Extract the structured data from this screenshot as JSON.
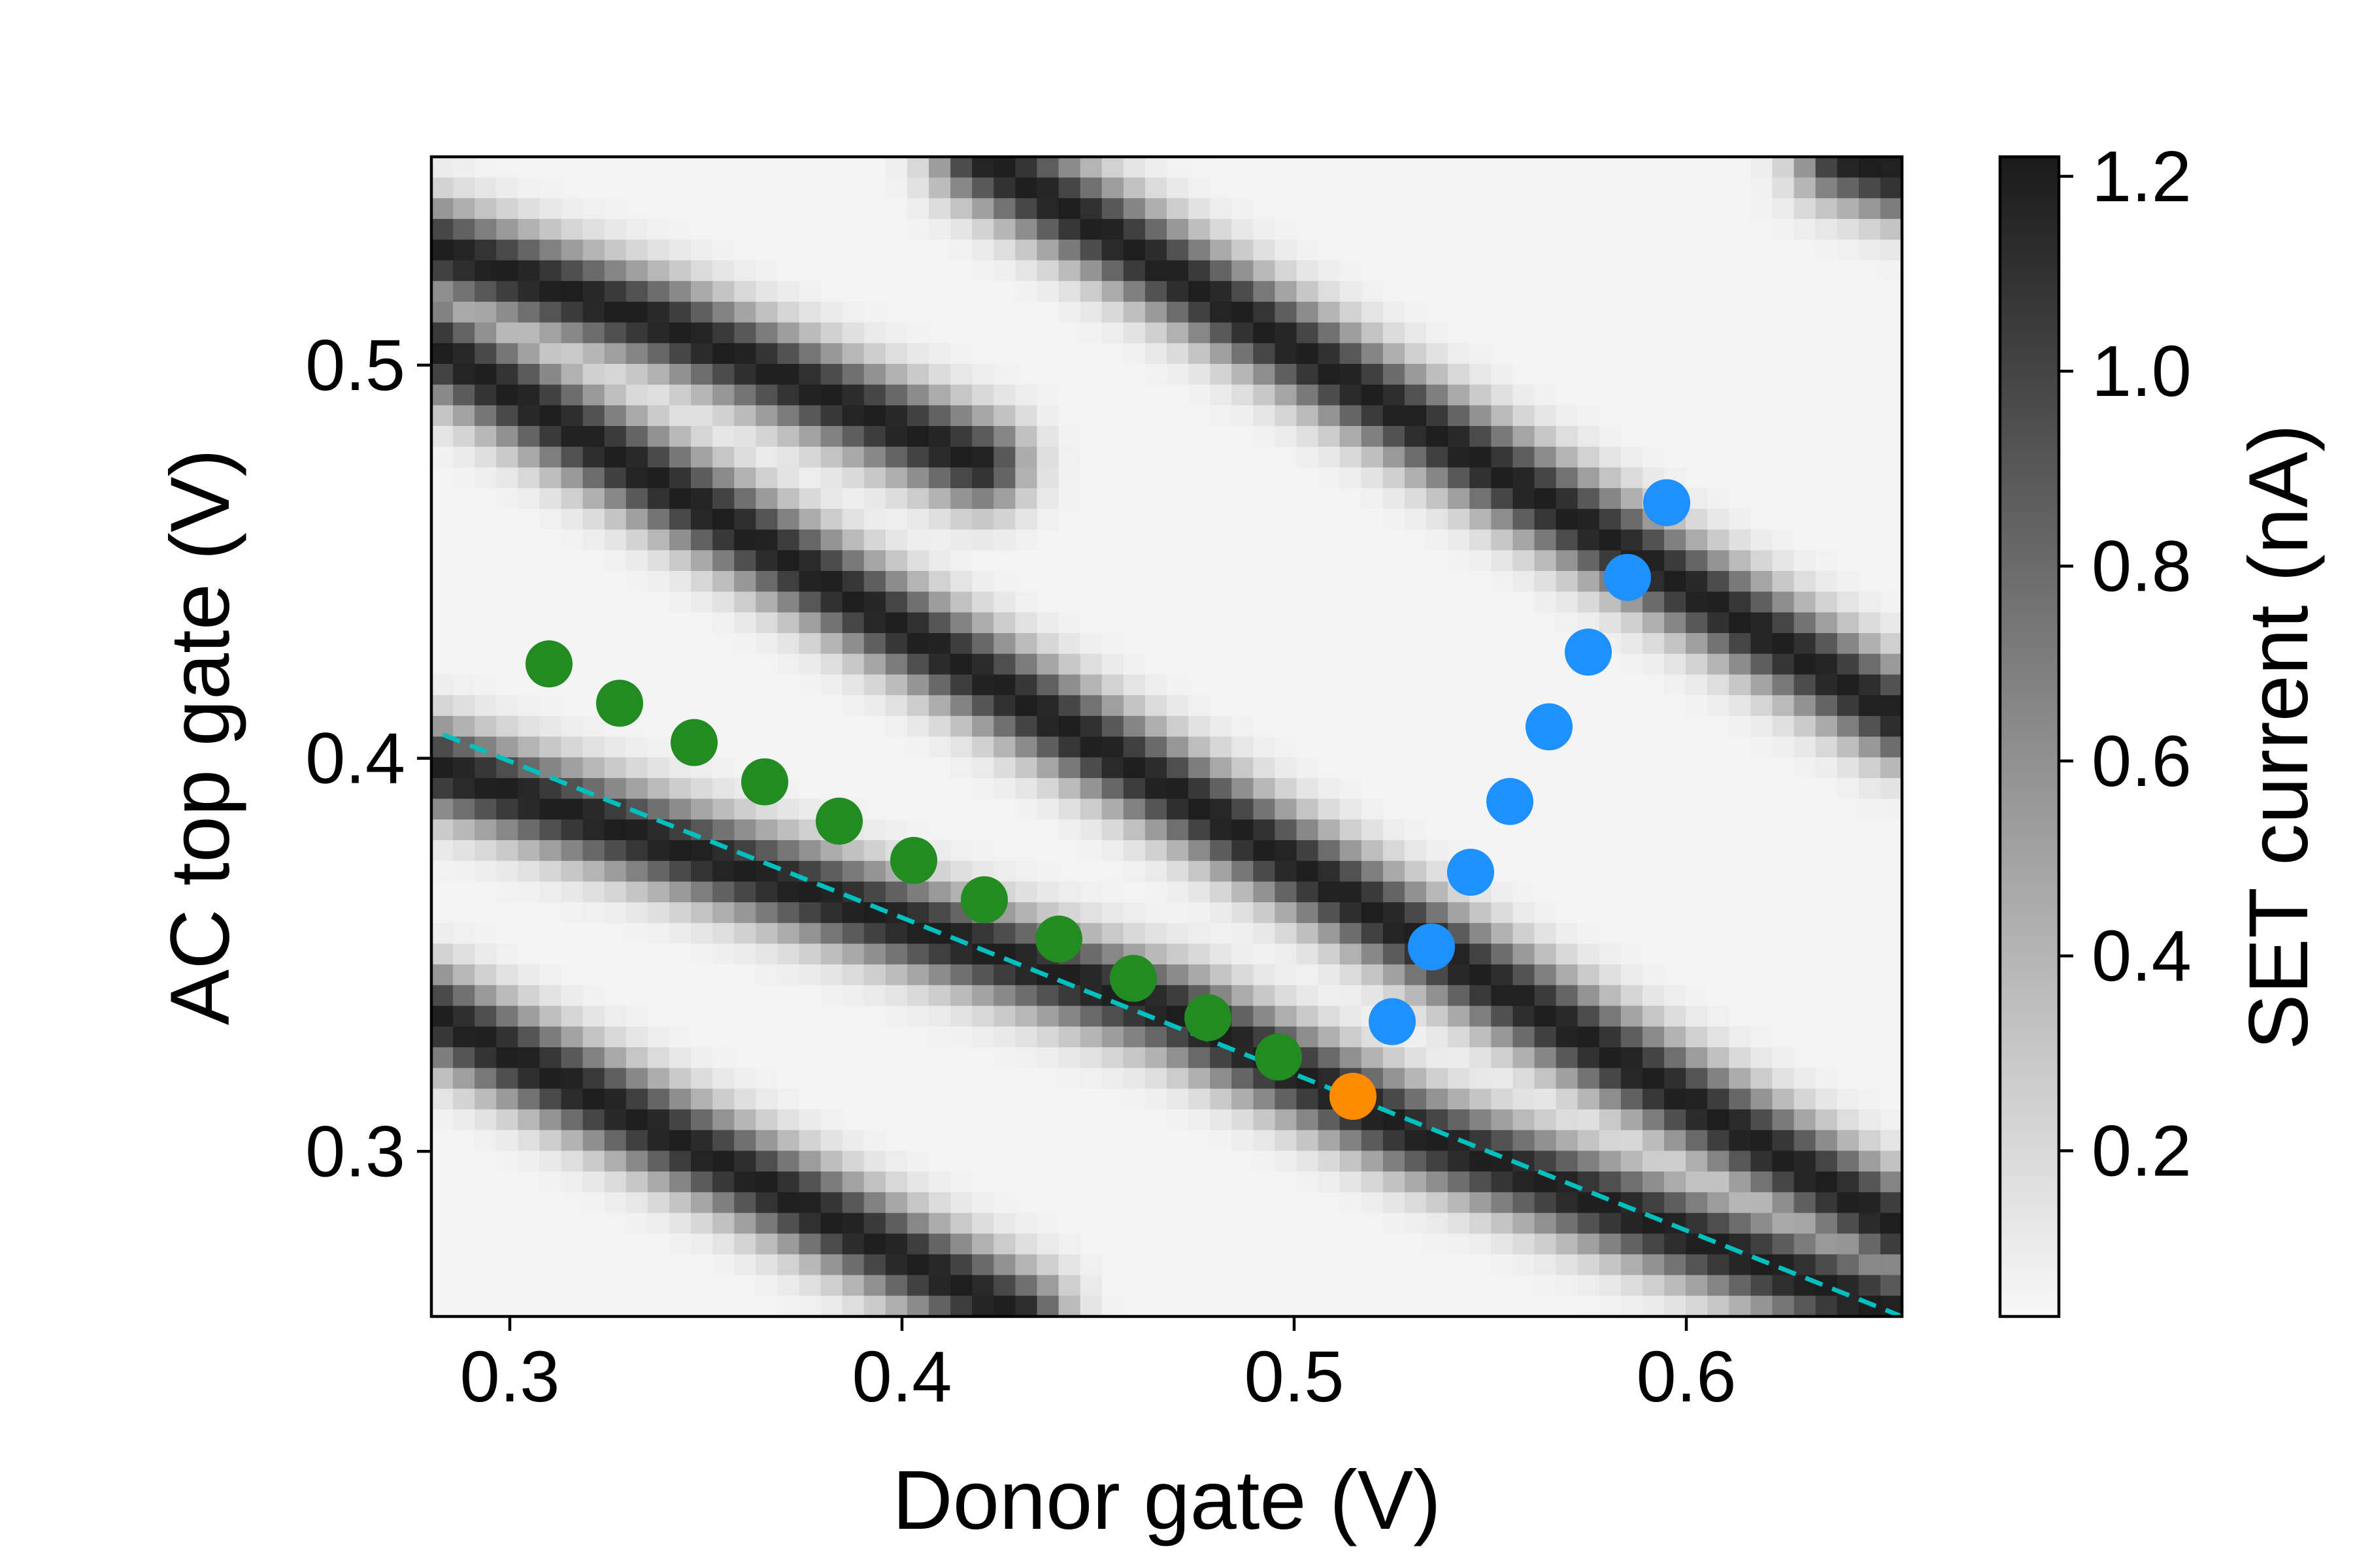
{
  "chart_data": {
    "type": "heatmap",
    "xlabel": "Donor gate (V)",
    "ylabel": "AC top gate (V)",
    "xlim": [
      0.28,
      0.655
    ],
    "ylim": [
      0.258,
      0.553
    ],
    "xticks": [
      0.3,
      0.4,
      0.5,
      0.6
    ],
    "xtick_labels": [
      "0.3",
      "0.4",
      "0.5",
      "0.6"
    ],
    "yticks": [
      0.3,
      0.4,
      0.5
    ],
    "ytick_labels": [
      "0.3",
      "0.4",
      "0.5"
    ],
    "grid": false,
    "legend": "none",
    "colormap": "gray_r",
    "colorbar": {
      "label": "SET current (nA)",
      "range": [
        0.03,
        1.22
      ],
      "ticks": [
        0.2,
        0.4,
        0.6,
        0.8,
        1.0,
        1.2
      ],
      "tick_labels": [
        "0.2",
        "0.4",
        "0.6",
        "0.8",
        "1.0",
        "1.2"
      ]
    },
    "heatmap_features": {
      "description_note": "",
      "background_current": 0.05,
      "peak_current": 1.2,
      "grid_columns": 68,
      "grid_rows": 56,
      "resonance_lines": [
        {
          "points": [
            [
              0.28,
              0.335
            ],
            [
              0.43,
              0.258
            ]
          ]
        },
        {
          "points": [
            [
              0.28,
              0.398
            ],
            [
              0.47,
              0.335
            ],
            [
              0.53,
              0.305
            ],
            [
              0.655,
              0.258
            ]
          ]
        },
        {
          "points": [
            [
              0.28,
              0.505
            ],
            [
              0.655,
              0.28
            ]
          ]
        },
        {
          "points": [
            [
              0.28,
              0.53
            ],
            [
              0.34,
              0.51
            ],
            [
              0.42,
              0.475
            ]
          ]
        },
        {
          "points": [
            [
              0.42,
              0.553
            ],
            [
              0.655,
              0.41
            ]
          ]
        },
        {
          "points": [
            [
              0.64,
              0.553
            ],
            [
              0.655,
              0.548
            ]
          ]
        }
      ]
    },
    "series": [
      {
        "color": "#228b22",
        "x": [
          0.31,
          0.328,
          0.347,
          0.365,
          0.384,
          0.403,
          0.421,
          0.44,
          0.459,
          0.478,
          0.496
        ],
        "y": [
          0.424,
          0.414,
          0.404,
          0.394,
          0.384,
          0.374,
          0.364,
          0.354,
          0.344,
          0.334,
          0.324
        ]
      },
      {
        "color": "#ff8c00",
        "x": [
          0.515
        ],
        "y": [
          0.314
        ]
      },
      {
        "color": "#1e90ff",
        "x": [
          0.525,
          0.535,
          0.545,
          0.555,
          0.565,
          0.575,
          0.585,
          0.595
        ],
        "y": [
          0.333,
          0.352,
          0.371,
          0.389,
          0.408,
          0.427,
          0.446,
          0.465
        ]
      }
    ],
    "dashed_line": {
      "color": "#00bfbf",
      "x": [
        0.283,
        0.655
      ],
      "y": [
        0.406,
        0.258
      ]
    }
  }
}
